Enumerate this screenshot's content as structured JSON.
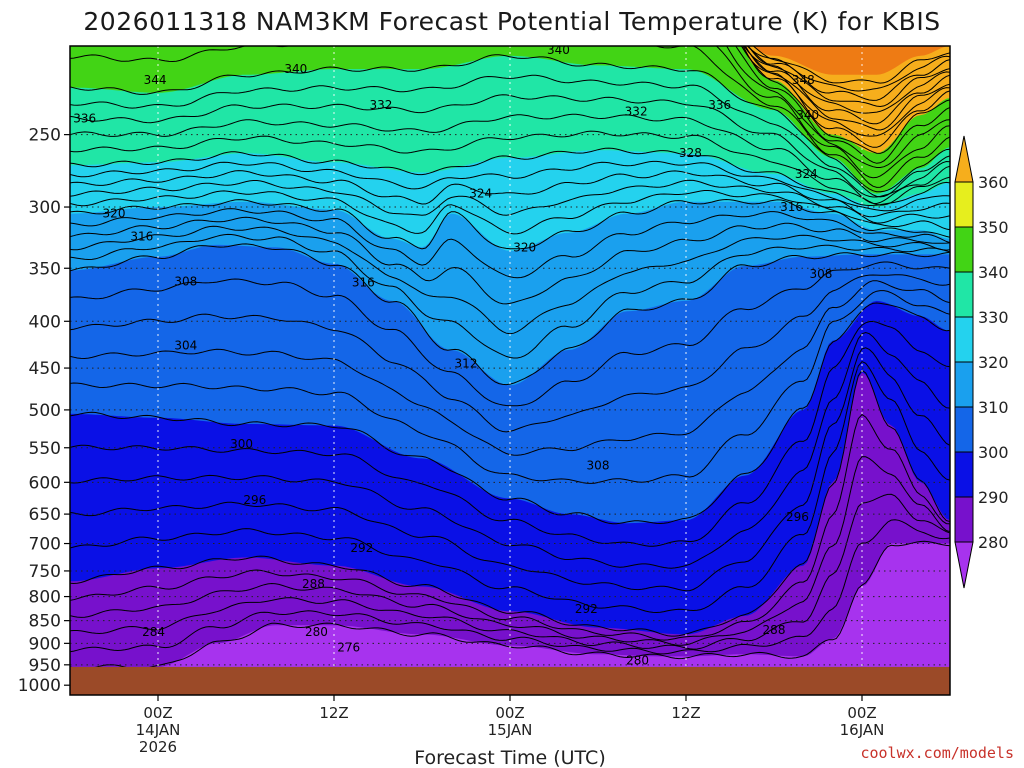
{
  "chart_data": {
    "type": "heatmap",
    "title": "2026011318 NAM3KM Forecast Potential Temperature (K) for KBIS",
    "xlabel": "Forecast Time (UTC)",
    "ylabel": "",
    "y_ticks": [
      "250",
      "300",
      "350",
      "400",
      "450",
      "500",
      "550",
      "600",
      "650",
      "700",
      "750",
      "800",
      "850",
      "900",
      "950",
      "1000"
    ],
    "x_ticks": [
      {
        "time_h": 6,
        "lines": [
          "00Z",
          "14JAN",
          "2026"
        ]
      },
      {
        "time_h": 18,
        "lines": [
          "12Z"
        ]
      },
      {
        "time_h": 30,
        "lines": [
          "00Z",
          "15JAN"
        ]
      },
      {
        "time_h": 42,
        "lines": [
          "12Z"
        ]
      },
      {
        "time_h": 54,
        "lines": [
          "00Z",
          "16JAN"
        ]
      }
    ],
    "x_range_hours": [
      0,
      60
    ],
    "y_range_hpa": [
      200,
      1025
    ],
    "surface_pressure_hpa": 955,
    "colorbar": {
      "levels": [
        270,
        280,
        290,
        300,
        310,
        320,
        330,
        340,
        350,
        360,
        370
      ],
      "colors": [
        "#ee22ee",
        "#a733ee",
        "#7711cc",
        "#0a10e6",
        "#1466e8",
        "#1aa0ee",
        "#24d2ee",
        "#20e6a6",
        "#42d415",
        "#e6ee1e",
        "#f6ae1c",
        "#ee7b14"
      ],
      "tick_labels": [
        "280",
        "290",
        "300",
        "310",
        "320",
        "330",
        "340",
        "350",
        "360"
      ]
    },
    "fill_bands": [
      {
        "level": 370,
        "anchors_hpa": [
          [
            0,
            170
          ],
          [
            6,
            170
          ],
          [
            12,
            170
          ],
          [
            18,
            170
          ],
          [
            24,
            170
          ],
          [
            30,
            170
          ],
          [
            36,
            170
          ],
          [
            42,
            170
          ],
          [
            48,
            205
          ],
          [
            52,
            215
          ],
          [
            55,
            215
          ],
          [
            58,
            205
          ],
          [
            60,
            200
          ]
        ]
      },
      {
        "level": 350,
        "anchors_hpa": [
          [
            0,
            150
          ],
          [
            6,
            150
          ],
          [
            12,
            150
          ],
          [
            18,
            150
          ],
          [
            24,
            150
          ],
          [
            30,
            150
          ],
          [
            36,
            150
          ],
          [
            42,
            160
          ],
          [
            48,
            218
          ],
          [
            52,
            250
          ],
          [
            55,
            262
          ],
          [
            58,
            238
          ],
          [
            60,
            228
          ]
        ]
      },
      {
        "level": 340,
        "anchors_hpa": [
          [
            0,
            222
          ],
          [
            6,
            225
          ],
          [
            12,
            215
          ],
          [
            18,
            212
          ],
          [
            24,
            212
          ],
          [
            30,
            205
          ],
          [
            36,
            210
          ],
          [
            42,
            212
          ],
          [
            48,
            235
          ],
          [
            52,
            265
          ],
          [
            55,
            290
          ],
          [
            58,
            272
          ],
          [
            60,
            258
          ]
        ]
      },
      {
        "level": 330,
        "anchors_hpa": [
          [
            0,
            270
          ],
          [
            6,
            268
          ],
          [
            12,
            262
          ],
          [
            18,
            268
          ],
          [
            24,
            275
          ],
          [
            30,
            265
          ],
          [
            36,
            260
          ],
          [
            42,
            262
          ],
          [
            48,
            276
          ],
          [
            52,
            290
          ],
          [
            55,
            300
          ],
          [
            58,
            290
          ],
          [
            60,
            282
          ]
        ]
      },
      {
        "level": 320,
        "anchors_hpa": [
          [
            0,
            305
          ],
          [
            6,
            300
          ],
          [
            12,
            296
          ],
          [
            18,
            302
          ],
          [
            22,
            325
          ],
          [
            24,
            332
          ],
          [
            26,
            305
          ],
          [
            30,
            335
          ],
          [
            34,
            320
          ],
          [
            38,
            305
          ],
          [
            42,
            296
          ],
          [
            48,
            296
          ],
          [
            52,
            305
          ],
          [
            55,
            318
          ],
          [
            58,
            318
          ],
          [
            60,
            325
          ]
        ]
      },
      {
        "level": 310,
        "anchors_hpa": [
          [
            0,
            352
          ],
          [
            6,
            340
          ],
          [
            10,
            330
          ],
          [
            14,
            332
          ],
          [
            18,
            346
          ],
          [
            22,
            380
          ],
          [
            26,
            430
          ],
          [
            30,
            470
          ],
          [
            34,
            430
          ],
          [
            38,
            390
          ],
          [
            42,
            380
          ],
          [
            46,
            348
          ],
          [
            50,
            340
          ],
          [
            54,
            338
          ],
          [
            58,
            338
          ],
          [
            60,
            338
          ]
        ]
      },
      {
        "level": 300,
        "anchors_hpa": [
          [
            0,
            505
          ],
          [
            6,
            510
          ],
          [
            12,
            518
          ],
          [
            18,
            520
          ],
          [
            24,
            565
          ],
          [
            30,
            625
          ],
          [
            34,
            650
          ],
          [
            38,
            665
          ],
          [
            42,
            660
          ],
          [
            46,
            590
          ],
          [
            50,
            500
          ],
          [
            52,
            420
          ],
          [
            55,
            380
          ],
          [
            58,
            395
          ],
          [
            60,
            410
          ]
        ]
      },
      {
        "level": 290,
        "anchors_hpa": [
          [
            0,
            770
          ],
          [
            6,
            745
          ],
          [
            12,
            725
          ],
          [
            18,
            740
          ],
          [
            24,
            780
          ],
          [
            30,
            830
          ],
          [
            36,
            865
          ],
          [
            42,
            880
          ],
          [
            46,
            840
          ],
          [
            50,
            740
          ],
          [
            52,
            600
          ],
          [
            54,
            455
          ],
          [
            56,
            520
          ],
          [
            58,
            600
          ],
          [
            60,
            660
          ]
        ]
      },
      {
        "level": 280,
        "anchors_hpa": [
          [
            0,
            955
          ],
          [
            6,
            955
          ],
          [
            10,
            900
          ],
          [
            14,
            860
          ],
          [
            18,
            860
          ],
          [
            24,
            880
          ],
          [
            30,
            905
          ],
          [
            36,
            925
          ],
          [
            40,
            930
          ],
          [
            42,
            930
          ],
          [
            46,
            925
          ],
          [
            50,
            930
          ],
          [
            52,
            890
          ],
          [
            54,
            780
          ],
          [
            56,
            700
          ],
          [
            58,
            700
          ],
          [
            60,
            700
          ]
        ]
      }
    ],
    "isentrope_labels": [
      {
        "value": "344",
        "time_h": 5.8,
        "hpa": 218
      },
      {
        "value": "340",
        "time_h": 15.4,
        "hpa": 212
      },
      {
        "value": "332",
        "time_h": 21.2,
        "hpa": 232
      },
      {
        "value": "340",
        "time_h": 33.3,
        "hpa": 202
      },
      {
        "value": "332",
        "time_h": 38.6,
        "hpa": 236
      },
      {
        "value": "336",
        "time_h": 44.3,
        "hpa": 232
      },
      {
        "value": "348",
        "time_h": 50.0,
        "hpa": 218
      },
      {
        "value": "340",
        "time_h": 50.3,
        "hpa": 238
      },
      {
        "value": "336",
        "time_h": 1.0,
        "hpa": 240
      },
      {
        "value": "328",
        "time_h": 42.3,
        "hpa": 262
      },
      {
        "value": "324",
        "time_h": 50.2,
        "hpa": 276
      },
      {
        "value": "324",
        "time_h": 28.0,
        "hpa": 290
      },
      {
        "value": "316",
        "time_h": 49.2,
        "hpa": 300
      },
      {
        "value": "320",
        "time_h": 3.0,
        "hpa": 305
      },
      {
        "value": "316",
        "time_h": 4.9,
        "hpa": 323
      },
      {
        "value": "320",
        "time_h": 31.0,
        "hpa": 332
      },
      {
        "value": "308",
        "time_h": 7.9,
        "hpa": 362
      },
      {
        "value": "316",
        "time_h": 20.0,
        "hpa": 363
      },
      {
        "value": "308",
        "time_h": 51.2,
        "hpa": 355
      },
      {
        "value": "304",
        "time_h": 7.9,
        "hpa": 425
      },
      {
        "value": "312",
        "time_h": 27.0,
        "hpa": 445
      },
      {
        "value": "300",
        "time_h": 11.7,
        "hpa": 545
      },
      {
        "value": "308",
        "time_h": 36.0,
        "hpa": 575
      },
      {
        "value": "296",
        "time_h": 12.6,
        "hpa": 627
      },
      {
        "value": "296",
        "time_h": 49.6,
        "hpa": 655
      },
      {
        "value": "292",
        "time_h": 19.9,
        "hpa": 708
      },
      {
        "value": "288",
        "time_h": 16.6,
        "hpa": 775
      },
      {
        "value": "292",
        "time_h": 35.2,
        "hpa": 825
      },
      {
        "value": "288",
        "time_h": 48.0,
        "hpa": 870
      },
      {
        "value": "284",
        "time_h": 5.7,
        "hpa": 875
      },
      {
        "value": "280",
        "time_h": 16.8,
        "hpa": 875
      },
      {
        "value": "276",
        "time_h": 19.0,
        "hpa": 910
      },
      {
        "value": "280",
        "time_h": 38.7,
        "hpa": 940
      }
    ],
    "ground_color": "#9b4a28"
  },
  "credit": "coolwx.com/models"
}
